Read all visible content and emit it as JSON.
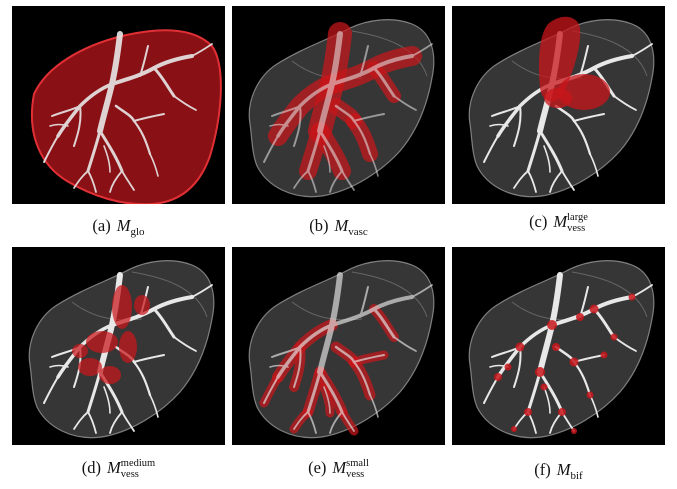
{
  "figure": {
    "panels": [
      {
        "id": "a",
        "label": "(a)",
        "symbol": "M",
        "subscript": "glo",
        "superscript": "",
        "overlay": "global"
      },
      {
        "id": "b",
        "label": "(b)",
        "symbol": "M",
        "subscript": "vasc",
        "superscript": "",
        "overlay": "vasc"
      },
      {
        "id": "c",
        "label": "(c)",
        "symbol": "M",
        "subscript": "vess",
        "superscript": "large",
        "overlay": "large"
      },
      {
        "id": "d",
        "label": "(d)",
        "symbol": "M",
        "subscript": "vess",
        "superscript": "medium",
        "overlay": "medium"
      },
      {
        "id": "e",
        "label": "(e)",
        "symbol": "M",
        "subscript": "vess",
        "superscript": "small",
        "overlay": "small"
      },
      {
        "id": "f",
        "label": "(f)",
        "symbol": "M",
        "subscript": "bif",
        "superscript": "",
        "overlay": "bif"
      }
    ]
  },
  "colors": {
    "background": "#000000",
    "liver": "#9a9a9a",
    "vessel": "#e6e6e6",
    "mask": "#c0181b"
  }
}
